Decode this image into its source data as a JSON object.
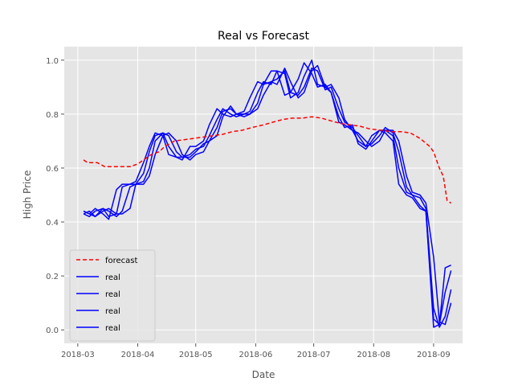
{
  "chart_data": {
    "type": "line",
    "title": "Real vs Forecast",
    "xlabel": "Date",
    "ylabel": "High Price",
    "xlim": [
      "2018-02-22",
      "2018-09-16"
    ],
    "ylim": [
      -0.05,
      1.05
    ],
    "grid": true,
    "legend_position": "lower-left",
    "x_ticks": [
      "2018-03-01",
      "2018-04-01",
      "2018-05-01",
      "2018-06-01",
      "2018-07-01",
      "2018-08-01",
      "2018-09-01"
    ],
    "x_tick_labels": [
      "2018-03",
      "2018-04",
      "2018-05",
      "2018-06",
      "2018-07",
      "2018-08",
      "2018-09"
    ],
    "y_ticks": [
      0.0,
      0.2,
      0.4,
      0.6,
      0.8,
      1.0
    ],
    "y_tick_labels": [
      "0.0",
      "0.2",
      "0.4",
      "0.6",
      "0.8",
      "1.0"
    ],
    "series": [
      {
        "name": "forecast",
        "color": "#ff0000",
        "style": "dashed",
        "x": [
          "2018-03-04",
          "2018-03-06",
          "2018-03-11",
          "2018-03-15",
          "2018-03-20",
          "2018-03-25",
          "2018-03-28",
          "2018-04-01",
          "2018-04-05",
          "2018-04-08",
          "2018-04-12",
          "2018-04-15",
          "2018-04-20",
          "2018-04-25",
          "2018-04-30",
          "2018-05-05",
          "2018-05-10",
          "2018-05-15",
          "2018-05-20",
          "2018-05-25",
          "2018-05-30",
          "2018-06-05",
          "2018-06-10",
          "2018-06-15",
          "2018-06-20",
          "2018-06-25",
          "2018-06-30",
          "2018-07-05",
          "2018-07-10",
          "2018-07-15",
          "2018-07-20",
          "2018-07-25",
          "2018-07-30",
          "2018-08-05",
          "2018-08-10",
          "2018-08-15",
          "2018-08-20",
          "2018-08-25",
          "2018-08-30",
          "2018-09-01",
          "2018-09-04",
          "2018-09-06",
          "2018-09-08",
          "2018-09-10"
        ],
        "y": [
          0.63,
          0.62,
          0.62,
          0.605,
          0.605,
          0.605,
          0.605,
          0.615,
          0.635,
          0.65,
          0.66,
          0.68,
          0.7,
          0.705,
          0.71,
          0.715,
          0.72,
          0.725,
          0.735,
          0.74,
          0.75,
          0.76,
          0.77,
          0.78,
          0.785,
          0.785,
          0.79,
          0.785,
          0.775,
          0.765,
          0.76,
          0.755,
          0.745,
          0.74,
          0.735,
          0.735,
          0.73,
          0.71,
          0.68,
          0.66,
          0.6,
          0.57,
          0.48,
          0.47
        ]
      },
      {
        "name": "real",
        "color": "#0000ff",
        "style": "solid",
        "x": [
          "2018-03-04",
          "2018-03-07",
          "2018-03-10",
          "2018-03-14",
          "2018-03-17",
          "2018-03-21",
          "2018-03-24",
          "2018-03-28",
          "2018-03-31",
          "2018-04-04",
          "2018-04-07",
          "2018-04-10",
          "2018-04-14",
          "2018-04-17",
          "2018-04-21",
          "2018-04-24",
          "2018-04-28",
          "2018-05-01",
          "2018-05-05",
          "2018-05-08",
          "2018-05-12",
          "2018-05-15",
          "2018-05-19",
          "2018-05-22",
          "2018-05-26",
          "2018-05-29",
          "2018-06-02",
          "2018-06-05",
          "2018-06-09",
          "2018-06-12",
          "2018-06-16",
          "2018-06-19",
          "2018-06-23",
          "2018-06-26",
          "2018-06-30",
          "2018-07-03",
          "2018-07-07",
          "2018-07-10",
          "2018-07-14",
          "2018-07-17",
          "2018-07-21",
          "2018-07-24",
          "2018-07-28",
          "2018-07-31",
          "2018-08-04",
          "2018-08-07",
          "2018-08-11",
          "2018-08-14",
          "2018-08-18",
          "2018-08-21",
          "2018-08-25",
          "2018-08-28",
          "2018-09-01",
          "2018-09-04",
          "2018-09-07",
          "2018-09-10"
        ],
        "y": [
          0.44,
          0.43,
          0.45,
          0.43,
          0.41,
          0.52,
          0.54,
          0.54,
          0.55,
          0.62,
          0.68,
          0.73,
          0.72,
          0.65,
          0.64,
          0.63,
          0.68,
          0.68,
          0.7,
          0.76,
          0.82,
          0.8,
          0.79,
          0.8,
          0.81,
          0.86,
          0.92,
          0.91,
          0.96,
          0.96,
          0.87,
          0.88,
          0.93,
          0.99,
          0.95,
          0.9,
          0.91,
          0.88,
          0.77,
          0.76,
          0.74,
          0.7,
          0.68,
          0.72,
          0.74,
          0.73,
          0.7,
          0.54,
          0.5,
          0.49,
          0.45,
          0.44,
          0.04,
          0.02,
          0.23,
          0.24
        ]
      },
      {
        "name": "real",
        "color": "#0000ff",
        "style": "solid",
        "x": [
          "2018-03-04",
          "2018-03-07",
          "2018-03-10",
          "2018-03-14",
          "2018-03-17",
          "2018-03-21",
          "2018-03-24",
          "2018-03-28",
          "2018-03-31",
          "2018-04-04",
          "2018-04-07",
          "2018-04-10",
          "2018-04-14",
          "2018-04-17",
          "2018-04-21",
          "2018-04-24",
          "2018-04-28",
          "2018-05-01",
          "2018-05-05",
          "2018-05-08",
          "2018-05-12",
          "2018-05-15",
          "2018-05-19",
          "2018-05-22",
          "2018-05-26",
          "2018-05-29",
          "2018-06-02",
          "2018-06-05",
          "2018-06-09",
          "2018-06-12",
          "2018-06-16",
          "2018-06-19",
          "2018-06-23",
          "2018-06-26",
          "2018-06-30",
          "2018-07-03",
          "2018-07-07",
          "2018-07-10",
          "2018-07-14",
          "2018-07-17",
          "2018-07-21",
          "2018-07-24",
          "2018-07-28",
          "2018-07-31",
          "2018-08-04",
          "2018-08-07",
          "2018-08-11",
          "2018-08-14",
          "2018-08-18",
          "2018-08-21",
          "2018-08-25",
          "2018-08-28",
          "2018-09-01",
          "2018-09-04",
          "2018-09-07",
          "2018-09-10"
        ],
        "y": [
          0.43,
          0.42,
          0.44,
          0.45,
          0.42,
          0.43,
          0.53,
          0.54,
          0.54,
          0.58,
          0.66,
          0.72,
          0.73,
          0.68,
          0.64,
          0.64,
          0.65,
          0.67,
          0.68,
          0.72,
          0.78,
          0.82,
          0.8,
          0.79,
          0.8,
          0.81,
          0.88,
          0.92,
          0.91,
          0.96,
          0.95,
          0.86,
          0.88,
          0.94,
          1.0,
          0.91,
          0.9,
          0.88,
          0.79,
          0.75,
          0.76,
          0.69,
          0.67,
          0.7,
          0.74,
          0.74,
          0.72,
          0.6,
          0.51,
          0.5,
          0.46,
          0.44,
          0.01,
          0.02,
          0.14,
          0.22
        ]
      },
      {
        "name": "real",
        "color": "#0000ff",
        "style": "solid",
        "x": [
          "2018-03-04",
          "2018-03-07",
          "2018-03-10",
          "2018-03-14",
          "2018-03-17",
          "2018-03-21",
          "2018-03-24",
          "2018-03-28",
          "2018-03-31",
          "2018-04-04",
          "2018-04-07",
          "2018-04-10",
          "2018-04-14",
          "2018-04-17",
          "2018-04-21",
          "2018-04-24",
          "2018-04-28",
          "2018-05-01",
          "2018-05-05",
          "2018-05-08",
          "2018-05-12",
          "2018-05-15",
          "2018-05-19",
          "2018-05-22",
          "2018-05-26",
          "2018-05-29",
          "2018-06-02",
          "2018-06-05",
          "2018-06-09",
          "2018-06-12",
          "2018-06-16",
          "2018-06-19",
          "2018-06-23",
          "2018-06-26",
          "2018-06-30",
          "2018-07-03",
          "2018-07-07",
          "2018-07-10",
          "2018-07-14",
          "2018-07-17",
          "2018-07-21",
          "2018-07-24",
          "2018-07-28",
          "2018-07-31",
          "2018-08-04",
          "2018-08-07",
          "2018-08-11",
          "2018-08-14",
          "2018-08-18",
          "2018-08-21",
          "2018-08-25",
          "2018-08-28",
          "2018-09-01",
          "2018-09-04",
          "2018-09-07",
          "2018-09-10"
        ],
        "y": [
          0.44,
          0.43,
          0.42,
          0.45,
          0.44,
          0.42,
          0.44,
          0.53,
          0.54,
          0.55,
          0.6,
          0.7,
          0.73,
          0.72,
          0.66,
          0.64,
          0.64,
          0.66,
          0.69,
          0.7,
          0.75,
          0.81,
          0.82,
          0.8,
          0.8,
          0.8,
          0.84,
          0.91,
          0.92,
          0.93,
          0.96,
          0.88,
          0.87,
          0.9,
          0.97,
          0.96,
          0.89,
          0.9,
          0.82,
          0.77,
          0.75,
          0.72,
          0.68,
          0.69,
          0.72,
          0.75,
          0.73,
          0.66,
          0.53,
          0.5,
          0.49,
          0.45,
          0.08,
          0.01,
          0.05,
          0.15
        ]
      },
      {
        "name": "real",
        "color": "#0000ff",
        "style": "solid",
        "x": [
          "2018-03-04",
          "2018-03-07",
          "2018-03-10",
          "2018-03-14",
          "2018-03-17",
          "2018-03-21",
          "2018-03-24",
          "2018-03-28",
          "2018-03-31",
          "2018-04-04",
          "2018-04-07",
          "2018-04-10",
          "2018-04-14",
          "2018-04-17",
          "2018-04-21",
          "2018-04-24",
          "2018-04-28",
          "2018-05-01",
          "2018-05-05",
          "2018-05-08",
          "2018-05-12",
          "2018-05-15",
          "2018-05-19",
          "2018-05-22",
          "2018-05-26",
          "2018-05-29",
          "2018-06-02",
          "2018-06-05",
          "2018-06-09",
          "2018-06-12",
          "2018-06-16",
          "2018-06-19",
          "2018-06-23",
          "2018-06-26",
          "2018-06-30",
          "2018-07-03",
          "2018-07-07",
          "2018-07-10",
          "2018-07-14",
          "2018-07-17",
          "2018-07-21",
          "2018-07-24",
          "2018-07-28",
          "2018-07-31",
          "2018-08-04",
          "2018-08-07",
          "2018-08-11",
          "2018-08-14",
          "2018-08-18",
          "2018-08-21",
          "2018-08-25",
          "2018-08-28",
          "2018-09-01",
          "2018-09-04",
          "2018-09-07",
          "2018-09-10"
        ],
        "y": [
          0.43,
          0.44,
          0.42,
          0.44,
          0.45,
          0.43,
          0.43,
          0.45,
          0.54,
          0.54,
          0.57,
          0.65,
          0.72,
          0.73,
          0.7,
          0.65,
          0.63,
          0.65,
          0.66,
          0.7,
          0.72,
          0.79,
          0.83,
          0.8,
          0.79,
          0.8,
          0.82,
          0.87,
          0.92,
          0.91,
          0.97,
          0.92,
          0.86,
          0.88,
          0.96,
          0.98,
          0.9,
          0.91,
          0.86,
          0.78,
          0.74,
          0.73,
          0.7,
          0.68,
          0.7,
          0.74,
          0.74,
          0.7,
          0.57,
          0.51,
          0.5,
          0.47,
          0.27,
          0.03,
          0.02,
          0.1
        ]
      }
    ]
  }
}
